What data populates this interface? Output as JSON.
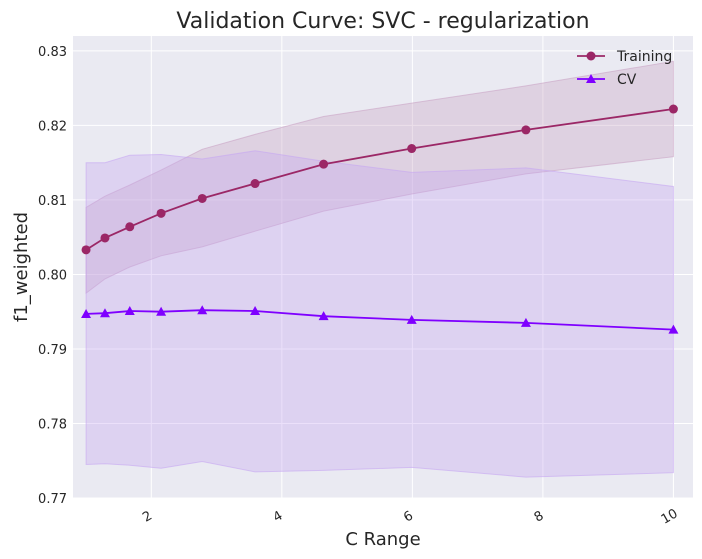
{
  "chart_data": {
    "type": "line",
    "title": "Validation Curve: SVC - regularization",
    "xlabel": "C Range",
    "ylabel": "f1_weighted",
    "xlim": [
      0.8,
      10.3
    ],
    "ylim": [
      0.77,
      0.832
    ],
    "xticks": [
      2,
      4,
      6,
      8,
      10
    ],
    "yticks": [
      0.77,
      0.78,
      0.79,
      0.8,
      0.81,
      0.82,
      0.83
    ],
    "xtick_labels": [
      "2",
      "4",
      "6",
      "8",
      "10"
    ],
    "ytick_labels": [
      "0.77",
      "0.78",
      "0.79",
      "0.80",
      "0.81",
      "0.82",
      "0.83"
    ],
    "grid": true,
    "legend_position": "top-right",
    "x": [
      1.0,
      1.29,
      1.67,
      2.15,
      2.78,
      3.59,
      4.64,
      5.99,
      7.74,
      10.0
    ],
    "series": [
      {
        "name": "Training",
        "color": "#9b2766",
        "fill_color": "#c9a4c4",
        "marker": "circle",
        "values": [
          0.8033,
          0.8049,
          0.8064,
          0.8082,
          0.8102,
          0.8122,
          0.8148,
          0.8169,
          0.8194,
          0.8222
        ],
        "lower": [
          0.7975,
          0.7994,
          0.801,
          0.8025,
          0.8037,
          0.8058,
          0.8085,
          0.8108,
          0.8135,
          0.8158
        ],
        "upper": [
          0.809,
          0.8105,
          0.812,
          0.814,
          0.8168,
          0.8188,
          0.8212,
          0.823,
          0.8253,
          0.8286
        ]
      },
      {
        "name": "CV",
        "color": "#7f00ff",
        "fill_color": "#c7a6f2",
        "marker": "triangle",
        "values": [
          0.7947,
          0.7948,
          0.7951,
          0.795,
          0.7952,
          0.7951,
          0.7944,
          0.7939,
          0.7935,
          0.7926
        ],
        "lower": [
          0.7745,
          0.7746,
          0.7744,
          0.774,
          0.7749,
          0.7735,
          0.7737,
          0.7741,
          0.7728,
          0.7734
        ],
        "upper": [
          0.815,
          0.815,
          0.816,
          0.8161,
          0.8155,
          0.8166,
          0.8152,
          0.8137,
          0.8143,
          0.8118
        ]
      }
    ]
  }
}
